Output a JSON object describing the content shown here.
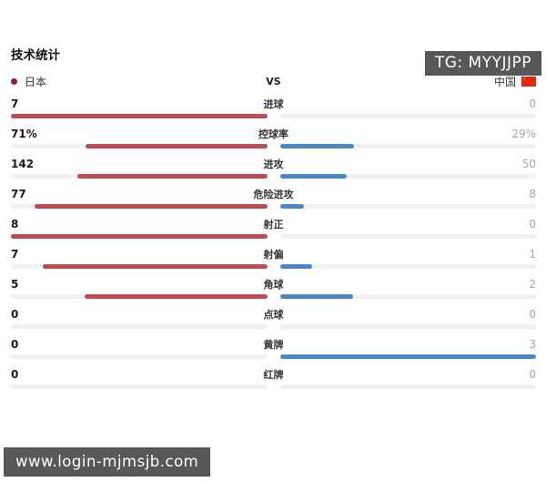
{
  "badges": {
    "tg": "TG: MYYJJPP",
    "site": "www.login-mjmsjb.com"
  },
  "title": "技术统计",
  "header": {
    "home_team": "日本",
    "vs": "VS",
    "away_team": "中国"
  },
  "colors": {
    "home_bar": "#bf4b50",
    "away_bar": "#4d86c5",
    "track": "#f1f1f1",
    "home_dot": "#8f1d33",
    "flag_red": "#de2910",
    "flag_yellow": "#ffde00",
    "badge_bg": "#58585a",
    "away_value_text": "#a6a6a6"
  },
  "stats": [
    {
      "label": "进球",
      "home": "7",
      "away": "0",
      "home_pct": 100,
      "away_pct": 0
    },
    {
      "label": "控球率",
      "home": "71%",
      "away": "29%",
      "home_pct": 71,
      "away_pct": 29
    },
    {
      "label": "进攻",
      "home": "142",
      "away": "50",
      "home_pct": 74,
      "away_pct": 26
    },
    {
      "label": "危险进攻",
      "home": "77",
      "away": "8",
      "home_pct": 90.6,
      "away_pct": 9.4
    },
    {
      "label": "射正",
      "home": "8",
      "away": "0",
      "home_pct": 100,
      "away_pct": 0
    },
    {
      "label": "射偏",
      "home": "7",
      "away": "1",
      "home_pct": 87.5,
      "away_pct": 12.5
    },
    {
      "label": "角球",
      "home": "5",
      "away": "2",
      "home_pct": 71.4,
      "away_pct": 28.6
    },
    {
      "label": "点球",
      "home": "0",
      "away": "0",
      "home_pct": 0,
      "away_pct": 0
    },
    {
      "label": "黄牌",
      "home": "0",
      "away": "3",
      "home_pct": 0,
      "away_pct": 100
    },
    {
      "label": "红牌",
      "home": "0",
      "away": "0",
      "home_pct": 0,
      "away_pct": 0
    }
  ],
  "chart_data": {
    "type": "bar",
    "subtype": "head-to-head horizontal bars",
    "title": "技术统计",
    "categories": [
      "进球",
      "控球率",
      "进攻",
      "危险进攻",
      "射正",
      "射偏",
      "角球",
      "点球",
      "黄牌",
      "红牌"
    ],
    "series": [
      {
        "name": "日本",
        "side": "left",
        "color": "#bf4b50",
        "values": [
          7,
          71,
          142,
          77,
          8,
          7,
          5,
          0,
          0,
          0
        ]
      },
      {
        "name": "中国",
        "side": "right",
        "color": "#4d86c5",
        "values": [
          0,
          29,
          50,
          8,
          0,
          1,
          2,
          0,
          3,
          0
        ]
      }
    ],
    "value_display": {
      "控球率": {
        "home": "71%",
        "away": "29%"
      }
    },
    "layout_hint": "each category: home value left (bold), label center, away value right (gray); bars grow outward from center, length = value / (home+away)"
  }
}
